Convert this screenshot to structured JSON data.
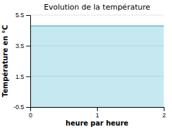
{
  "chart_data": {
    "type": "area",
    "title": "Evolution de la température",
    "xlabel": "heure par heure",
    "ylabel": "Température en °C",
    "x": [
      0,
      2
    ],
    "values": [
      4.8,
      4.8
    ],
    "color": "#5bbfd8",
    "xlim": [
      0,
      2
    ],
    "ylim": [
      -0.5,
      5.5
    ],
    "xticks": [
      0,
      1,
      2
    ],
    "yticks": [
      -0.5,
      1.5,
      3.5,
      5.5
    ],
    "grid": true
  }
}
